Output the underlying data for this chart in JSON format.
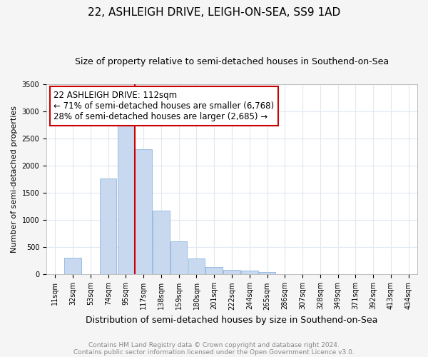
{
  "title": "22, ASHLEIGH DRIVE, LEIGH-ON-SEA, SS9 1AD",
  "subtitle": "Size of property relative to semi-detached houses in Southend-on-Sea",
  "xlabel": "Distribution of semi-detached houses by size in Southend-on-Sea",
  "ylabel": "Number of semi-detached properties",
  "footer1": "Contains HM Land Registry data © Crown copyright and database right 2024.",
  "footer2": "Contains public sector information licensed under the Open Government Licence v3.0.",
  "bar_labels": [
    "11sqm",
    "32sqm",
    "53sqm",
    "74sqm",
    "95sqm",
    "117sqm",
    "138sqm",
    "159sqm",
    "180sqm",
    "201sqm",
    "222sqm",
    "244sqm",
    "265sqm",
    "286sqm",
    "307sqm",
    "328sqm",
    "349sqm",
    "371sqm",
    "392sqm",
    "413sqm",
    "434sqm"
  ],
  "bar_values": [
    10,
    310,
    10,
    1770,
    2950,
    2300,
    1170,
    610,
    290,
    140,
    80,
    75,
    50,
    10,
    0,
    0,
    0,
    0,
    0,
    0,
    0
  ],
  "bar_color": "#c8d8ef",
  "bar_edge_color": "#7aacdc",
  "vline_color": "#cc0000",
  "annotation_line1": "22 ASHLEIGH DRIVE: 112sqm",
  "annotation_line2": "← 71% of semi-detached houses are smaller (6,768)",
  "annotation_line3": "28% of semi-detached houses are larger (2,685) →",
  "annotation_box_color": "#ffffff",
  "annotation_box_edge_color": "#cc0000",
  "ylim": [
    0,
    3500
  ],
  "yticks": [
    0,
    500,
    1000,
    1500,
    2000,
    2500,
    3000,
    3500
  ],
  "bg_color": "#f5f5f5",
  "plot_bg_color": "#ffffff",
  "grid_color": "#e0e8f0",
  "title_fontsize": 11,
  "subtitle_fontsize": 9,
  "xlabel_fontsize": 9,
  "ylabel_fontsize": 8,
  "tick_fontsize": 7,
  "footer_fontsize": 6.5,
  "annotation_fontsize": 8.5
}
